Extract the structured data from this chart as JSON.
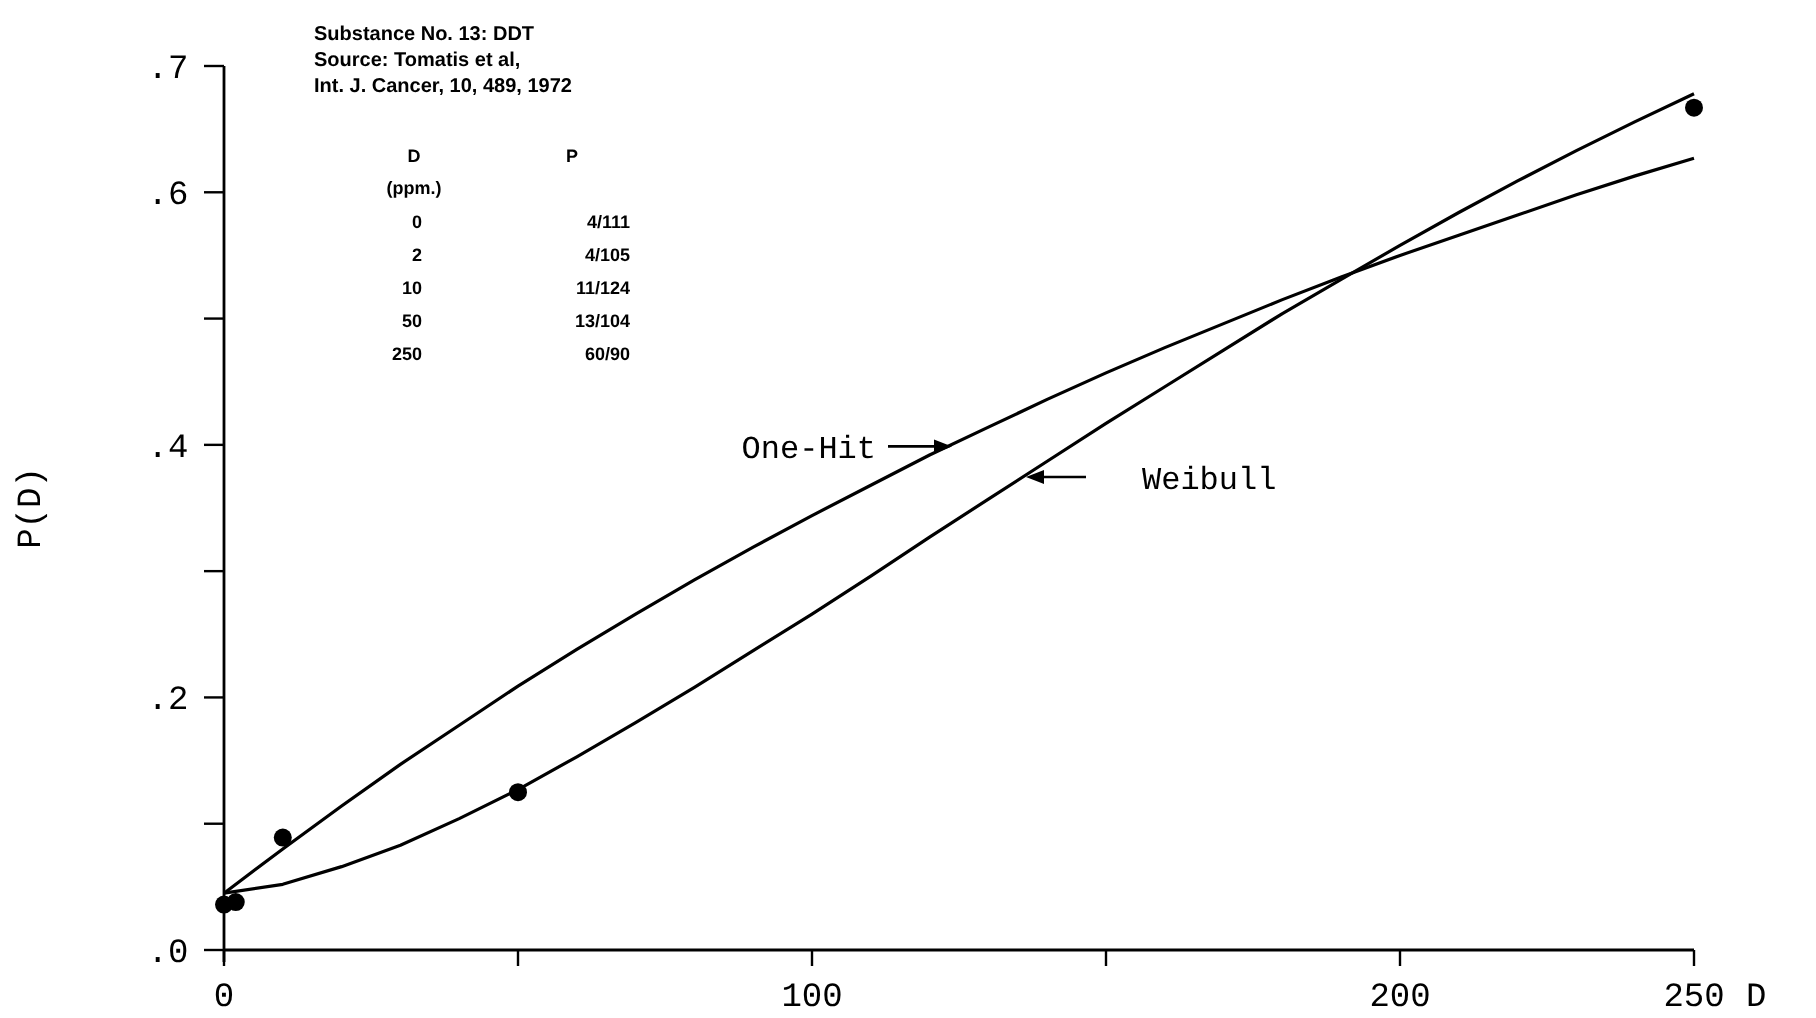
{
  "chart_data": [
    {
      "type": "line",
      "title": "Substance No. 13: DDT",
      "annotations": [
        "Source: Tomatis et al,",
        "Int. J. Cancer, 10, 489, 1972"
      ],
      "xlabel": "D",
      "ylabel": "P(D)",
      "xlim": [
        0,
        250
      ],
      "xticks": [
        0,
        {
          "value": 50,
          "label": null
        },
        100,
        {
          "value": 150,
          "label": null
        },
        200,
        250
      ],
      "ylim": [
        0,
        0.7
      ],
      "yticks": [
        {
          "value": 0,
          "label": ".0"
        },
        {
          "value": 0.1,
          "label": null
        },
        {
          "value": 0.2,
          "label": ".2"
        },
        {
          "value": 0.3,
          "label": null
        },
        {
          "value": 0.4,
          "label": ".4"
        },
        {
          "value": 0.5,
          "label": null
        },
        {
          "value": 0.6,
          "label": ".6"
        },
        {
          "value": 0.7,
          "label": ".7"
        }
      ],
      "series": [
        {
          "type": "scatter",
          "color": "#000000",
          "marker": "circle",
          "x": [
            0,
            2,
            10,
            50,
            250
          ],
          "values": [
            0.036,
            0.038,
            0.089,
            0.125,
            0.667
          ]
        },
        {
          "name": "One-Hit",
          "color": "#000000",
          "x": [
            0,
            10,
            20,
            30,
            40,
            50,
            60,
            70,
            80,
            90,
            100,
            110,
            120,
            130,
            140,
            150,
            160,
            170,
            180,
            190,
            200,
            210,
            220,
            230,
            240,
            250
          ],
          "values": [
            0.045,
            0.08,
            0.114,
            0.147,
            0.178,
            0.209,
            0.238,
            0.266,
            0.293,
            0.319,
            0.344,
            0.368,
            0.392,
            0.414,
            0.436,
            0.457,
            0.477,
            0.496,
            0.515,
            0.533,
            0.55,
            0.566,
            0.582,
            0.598,
            0.613,
            0.627
          ]
        },
        {
          "name": "Weibull",
          "color": "#000000",
          "x": [
            0,
            10,
            20,
            30,
            40,
            50,
            60,
            70,
            80,
            90,
            100,
            110,
            120,
            130,
            140,
            150,
            160,
            170,
            180,
            190,
            200,
            210,
            220,
            230,
            240,
            250
          ],
          "values": [
            0.045,
            0.052,
            0.066,
            0.083,
            0.104,
            0.127,
            0.153,
            0.18,
            0.208,
            0.237,
            0.266,
            0.296,
            0.327,
            0.357,
            0.387,
            0.417,
            0.446,
            0.475,
            0.504,
            0.531,
            0.558,
            0.584,
            0.609,
            0.633,
            0.656,
            0.678
          ]
        }
      ]
    },
    {
      "type": "other",
      "annotations": [
        "D",
        "(ppm.)",
        "0",
        "2",
        "10",
        "50",
        "250",
        "P",
        "4/111",
        "4/105",
        "11/124",
        "13/104",
        "60/90"
      ]
    }
  ]
}
